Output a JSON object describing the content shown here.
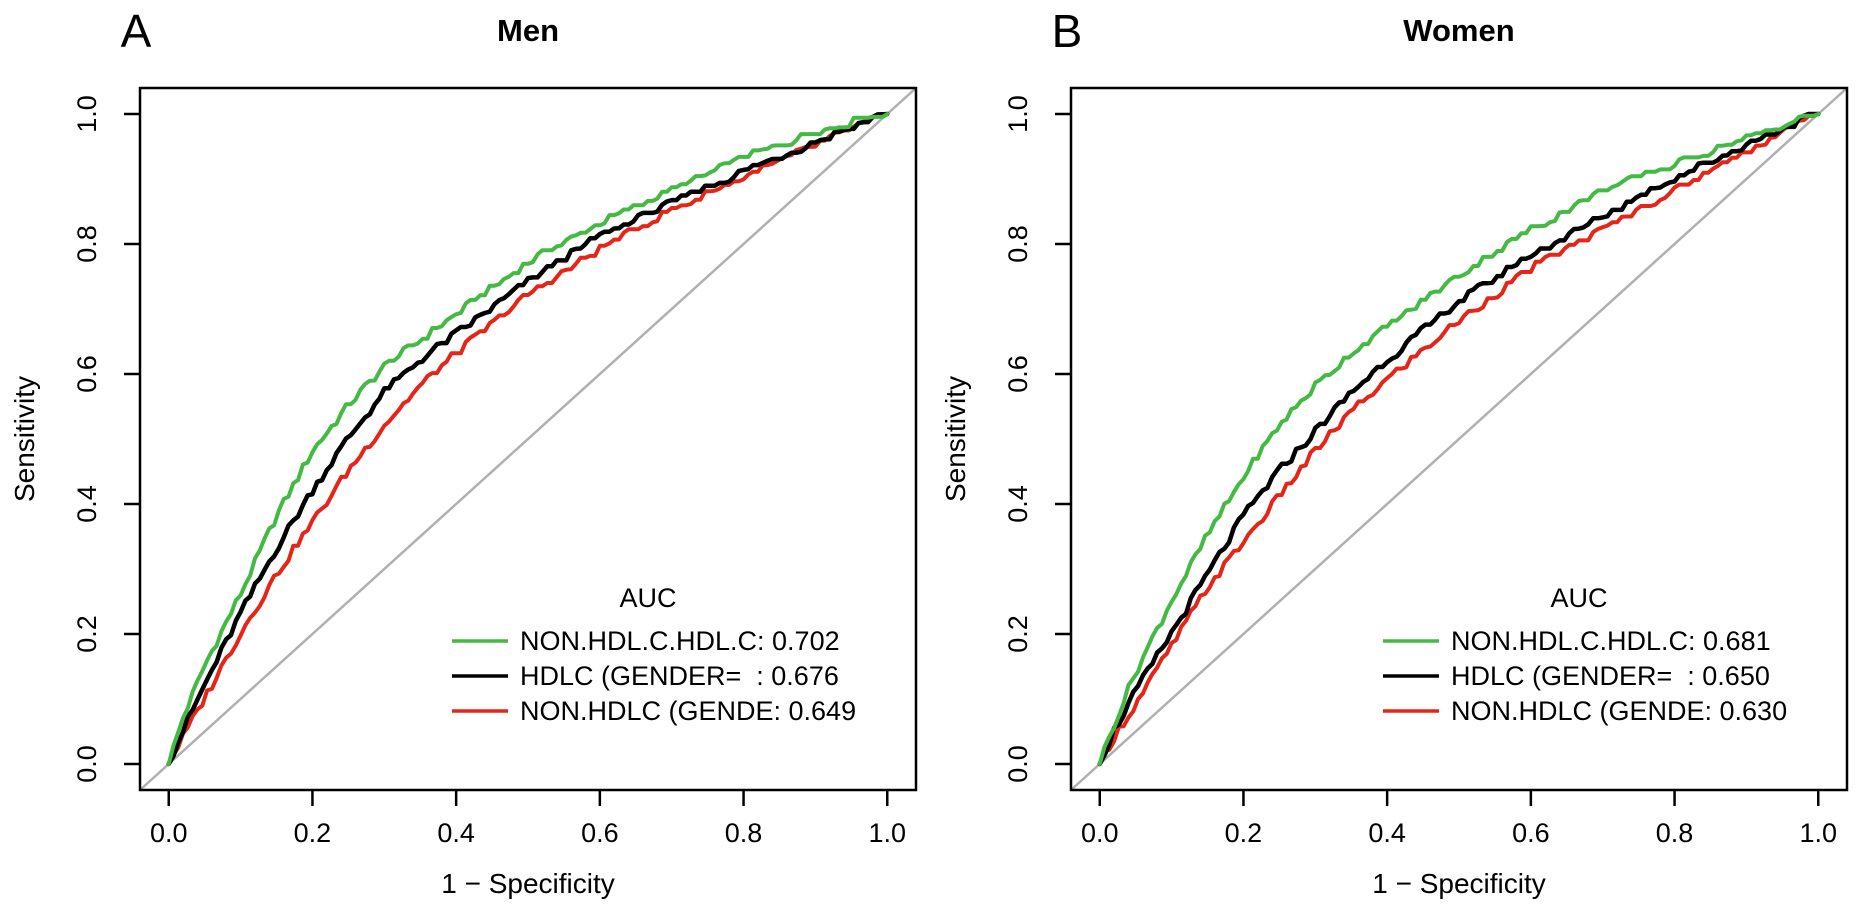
{
  "figure": {
    "panels": [
      {
        "letter": "A",
        "title": "Men",
        "xlabel": "1 − Specificity",
        "ylabel": "Sensitivity",
        "x_ticks": [
          "0.0",
          "0.2",
          "0.4",
          "0.6",
          "0.8",
          "1.0"
        ],
        "y_ticks": [
          "0.0",
          "0.2",
          "0.4",
          "0.6",
          "0.8",
          "1.0"
        ],
        "legend": {
          "title": "AUC",
          "entries": [
            {
              "label": "NON.HDL.C.HDL.C: 0.702",
              "color": "#44b944"
            },
            {
              "label": "HDLC (GENDER=  : 0.676",
              "color": "#000000"
            },
            {
              "label": "NON.HDLC (GENDE: 0.649",
              "color": "#e62519"
            }
          ]
        }
      },
      {
        "letter": "B",
        "title": "Women",
        "xlabel": "1 − Specificity",
        "ylabel": "Sensitivity",
        "x_ticks": [
          "0.0",
          "0.2",
          "0.4",
          "0.6",
          "0.8",
          "1.0"
        ],
        "y_ticks": [
          "0.0",
          "0.2",
          "0.4",
          "0.6",
          "0.8",
          "1.0"
        ],
        "legend": {
          "title": "AUC",
          "entries": [
            {
              "label": "NON.HDL.C.HDL.C: 0.681",
              "color": "#44b944"
            },
            {
              "label": "HDLC (GENDER=  : 0.650",
              "color": "#000000"
            },
            {
              "label": "NON.HDLC (GENDE: 0.630",
              "color": "#e62519"
            }
          ]
        }
      }
    ],
    "colors": {
      "green_curve": "#44b944",
      "black_curve": "#000000",
      "red_curve": "#e62519",
      "diagonal": "#b0b0b0",
      "text": "#000000"
    }
  },
  "chart_data": [
    {
      "type": "line",
      "title": "Men",
      "xlabel": "1 − Specificity",
      "ylabel": "Sensitivity",
      "xlim": [
        0,
        1
      ],
      "ylim": [
        0,
        1
      ],
      "x_tick_values": [
        0.0,
        0.2,
        0.4,
        0.6,
        0.8,
        1.0
      ],
      "y_tick_values": [
        0.0,
        0.2,
        0.4,
        0.6,
        0.8,
        1.0
      ],
      "grid": false,
      "legend_position": "bottom-right-inside",
      "diagonal_reference": true,
      "series": [
        {
          "name": "NON.HDL.C.HDL.C",
          "auc": 0.702,
          "color": "#44b944",
          "x": [
            0,
            0.02,
            0.05,
            0.1,
            0.15,
            0.2,
            0.25,
            0.3,
            0.35,
            0.4,
            0.5,
            0.6,
            0.7,
            0.8,
            0.9,
            1
          ],
          "y": [
            0,
            0.07,
            0.15,
            0.26,
            0.38,
            0.48,
            0.55,
            0.61,
            0.65,
            0.69,
            0.77,
            0.83,
            0.88,
            0.93,
            0.97,
            1
          ]
        },
        {
          "name": "HDLC (GENDER=",
          "auc": 0.676,
          "color": "#000000",
          "x": [
            0,
            0.02,
            0.05,
            0.1,
            0.15,
            0.2,
            0.25,
            0.3,
            0.35,
            0.4,
            0.5,
            0.6,
            0.7,
            0.8,
            0.9,
            1
          ],
          "y": [
            0,
            0.05,
            0.12,
            0.23,
            0.33,
            0.42,
            0.5,
            0.57,
            0.62,
            0.66,
            0.74,
            0.81,
            0.86,
            0.91,
            0.955,
            1
          ]
        },
        {
          "name": "NON.HDLC (GENDE",
          "auc": 0.649,
          "color": "#e62519",
          "x": [
            0,
            0.02,
            0.05,
            0.1,
            0.15,
            0.2,
            0.25,
            0.3,
            0.35,
            0.4,
            0.5,
            0.6,
            0.7,
            0.8,
            0.9,
            1
          ],
          "y": [
            0,
            0.04,
            0.1,
            0.2,
            0.29,
            0.37,
            0.45,
            0.52,
            0.58,
            0.63,
            0.72,
            0.79,
            0.85,
            0.9,
            0.95,
            1
          ]
        }
      ]
    },
    {
      "type": "line",
      "title": "Women",
      "xlabel": "1 − Specificity",
      "ylabel": "Sensitivity",
      "xlim": [
        0,
        1
      ],
      "ylim": [
        0,
        1
      ],
      "x_tick_values": [
        0.0,
        0.2,
        0.4,
        0.6,
        0.8,
        1.0
      ],
      "y_tick_values": [
        0.0,
        0.2,
        0.4,
        0.6,
        0.8,
        1.0
      ],
      "grid": false,
      "legend_position": "bottom-right-inside",
      "diagonal_reference": true,
      "series": [
        {
          "name": "NON.HDL.C.HDL.C",
          "auc": 0.681,
          "color": "#44b944",
          "x": [
            0,
            0.02,
            0.05,
            0.1,
            0.15,
            0.2,
            0.25,
            0.3,
            0.35,
            0.4,
            0.5,
            0.6,
            0.7,
            0.8,
            0.9,
            1
          ],
          "y": [
            0,
            0.06,
            0.14,
            0.25,
            0.35,
            0.44,
            0.52,
            0.58,
            0.63,
            0.67,
            0.75,
            0.82,
            0.88,
            0.92,
            0.96,
            1
          ]
        },
        {
          "name": "HDLC (GENDER=",
          "auc": 0.65,
          "color": "#000000",
          "x": [
            0,
            0.02,
            0.05,
            0.1,
            0.15,
            0.2,
            0.25,
            0.3,
            0.35,
            0.4,
            0.5,
            0.6,
            0.7,
            0.8,
            0.9,
            1
          ],
          "y": [
            0,
            0.05,
            0.11,
            0.2,
            0.29,
            0.38,
            0.45,
            0.51,
            0.57,
            0.62,
            0.71,
            0.78,
            0.84,
            0.9,
            0.95,
            1
          ]
        },
        {
          "name": "NON.HDLC (GENDE",
          "auc": 0.63,
          "color": "#e62519",
          "x": [
            0,
            0.02,
            0.05,
            0.1,
            0.15,
            0.2,
            0.25,
            0.3,
            0.35,
            0.4,
            0.5,
            0.6,
            0.7,
            0.8,
            0.9,
            1
          ],
          "y": [
            0,
            0.04,
            0.09,
            0.18,
            0.27,
            0.34,
            0.41,
            0.48,
            0.54,
            0.59,
            0.68,
            0.76,
            0.82,
            0.88,
            0.94,
            1
          ]
        }
      ]
    }
  ]
}
